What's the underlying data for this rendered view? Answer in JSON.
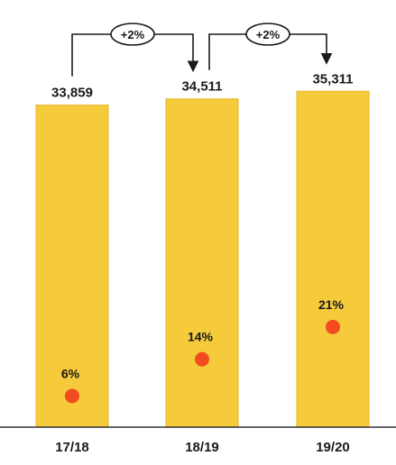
{
  "chart_data": {
    "type": "bar",
    "categories": [
      "17/18",
      "18/19",
      "19/20"
    ],
    "values": [
      33859,
      34511,
      35311
    ],
    "value_labels": [
      "33,859",
      "34,511",
      "35,311"
    ],
    "ylim": [
      0,
      36000
    ],
    "grid": false,
    "legend": "none",
    "secondary_markers": {
      "values": [
        6,
        14,
        21
      ],
      "labels": [
        "6%",
        "14%",
        "21%"
      ],
      "unit": "%",
      "ylim": [
        0,
        100
      ]
    },
    "change_annotations": [
      {
        "from": "17/18",
        "to": "18/19",
        "label": "+2%"
      },
      {
        "from": "18/19",
        "to": "19/20",
        "label": "+2%"
      }
    ],
    "colors": {
      "bar": "#F5CB3C",
      "bar_edge": "#E7B92A",
      "marker": "#F24B20",
      "axis": "#333333",
      "text": "#1a1a1a"
    }
  }
}
